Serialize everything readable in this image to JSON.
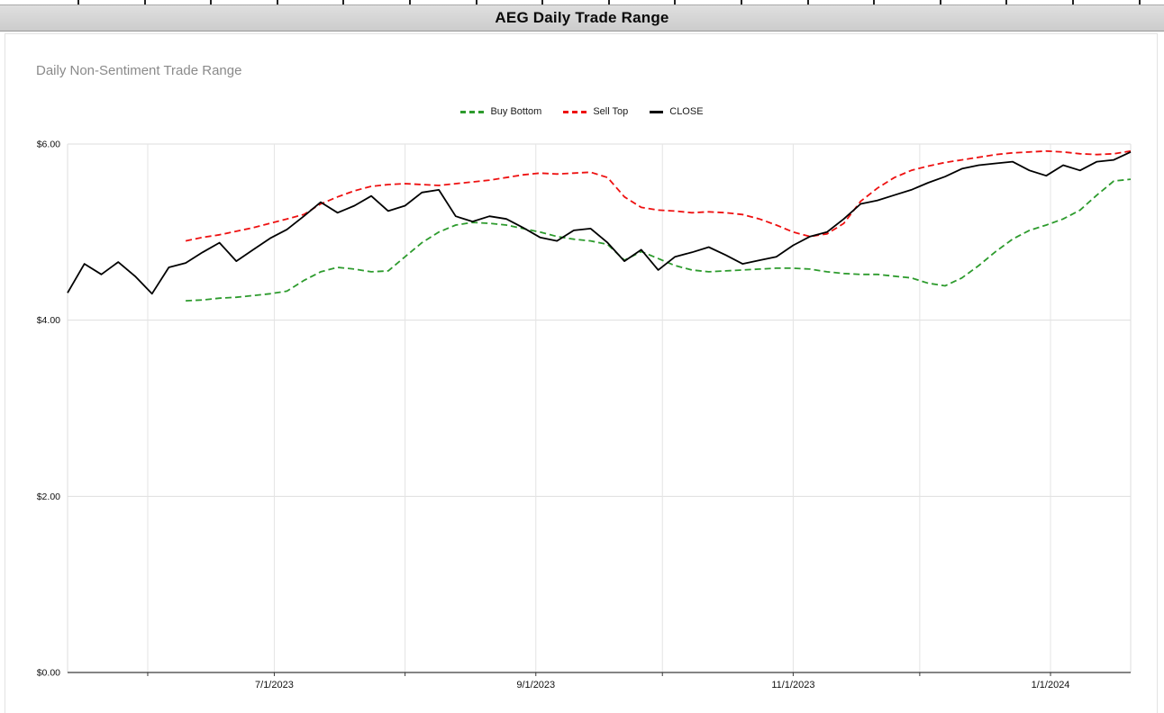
{
  "window": {
    "title": "AEG Daily Trade Range"
  },
  "chart": {
    "subtitle": "Daily Non-Sentiment Trade Range"
  },
  "chart_data": {
    "type": "line",
    "title": "AEG Daily Trade Range",
    "subtitle": "Daily Non-Sentiment Trade Range",
    "xlabel": "",
    "ylabel": "",
    "ylim": [
      0,
      6
    ],
    "xlim": [
      "2023-05-13",
      "2024-01-20"
    ],
    "grid": true,
    "legend_position": "top-center",
    "yticks": [
      {
        "value": 0,
        "label": "$0.00"
      },
      {
        "value": 2,
        "label": "$2.00"
      },
      {
        "value": 4,
        "label": "$4.00"
      },
      {
        "value": 6,
        "label": "$6.00"
      }
    ],
    "xticks": [
      {
        "date": "2023-06-01",
        "label": ""
      },
      {
        "date": "2023-07-01",
        "label": "7/1/2023"
      },
      {
        "date": "2023-08-01",
        "label": ""
      },
      {
        "date": "2023-09-01",
        "label": "9/1/2023"
      },
      {
        "date": "2023-10-01",
        "label": ""
      },
      {
        "date": "2023-11-01",
        "label": "11/1/2023"
      },
      {
        "date": "2023-12-01",
        "label": ""
      },
      {
        "date": "2024-01-01",
        "label": "1/1/2024"
      }
    ],
    "x": [
      "2023-05-13",
      "2023-05-17",
      "2023-05-21",
      "2023-05-25",
      "2023-05-29",
      "2023-06-02",
      "2023-06-06",
      "2023-06-10",
      "2023-06-14",
      "2023-06-18",
      "2023-06-22",
      "2023-06-26",
      "2023-06-30",
      "2023-07-04",
      "2023-07-08",
      "2023-07-12",
      "2023-07-16",
      "2023-07-20",
      "2023-07-24",
      "2023-07-28",
      "2023-08-01",
      "2023-08-05",
      "2023-08-09",
      "2023-08-13",
      "2023-08-17",
      "2023-08-21",
      "2023-08-25",
      "2023-08-29",
      "2023-09-02",
      "2023-09-06",
      "2023-09-10",
      "2023-09-14",
      "2023-09-18",
      "2023-09-22",
      "2023-09-26",
      "2023-09-30",
      "2023-10-04",
      "2023-10-08",
      "2023-10-12",
      "2023-10-16",
      "2023-10-20",
      "2023-10-24",
      "2023-10-28",
      "2023-11-01",
      "2023-11-05",
      "2023-11-09",
      "2023-11-13",
      "2023-11-17",
      "2023-11-21",
      "2023-11-25",
      "2023-11-29",
      "2023-12-03",
      "2023-12-07",
      "2023-12-11",
      "2023-12-15",
      "2023-12-19",
      "2023-12-23",
      "2023-12-27",
      "2023-12-31",
      "2024-01-04",
      "2024-01-08",
      "2024-01-12",
      "2024-01-16",
      "2024-01-20"
    ],
    "series": [
      {
        "name": "Buy Bottom",
        "color": "#2d9b2d",
        "style": "dashed",
        "dash": "7 4",
        "width": 1.8,
        "values": [
          null,
          null,
          null,
          null,
          null,
          null,
          null,
          4.22,
          4.23,
          4.25,
          4.26,
          4.28,
          4.3,
          4.33,
          4.45,
          4.55,
          4.6,
          4.58,
          4.55,
          4.56,
          4.72,
          4.88,
          5.0,
          5.08,
          5.11,
          5.1,
          5.08,
          5.04,
          5.0,
          4.95,
          4.92,
          4.9,
          4.86,
          4.68,
          4.78,
          4.7,
          4.62,
          4.57,
          4.55,
          4.56,
          4.57,
          4.58,
          4.59,
          4.59,
          4.58,
          4.55,
          4.53,
          4.52,
          4.52,
          4.5,
          4.48,
          4.42,
          4.39,
          4.48,
          4.62,
          4.78,
          4.92,
          5.02,
          5.08,
          5.15,
          5.25,
          5.42,
          5.58,
          5.6
        ]
      },
      {
        "name": "Sell Top",
        "color": "#ee1111",
        "style": "dashed",
        "dash": "7 4",
        "width": 1.8,
        "values": [
          null,
          null,
          null,
          null,
          null,
          null,
          null,
          4.9,
          4.94,
          4.97,
          5.01,
          5.05,
          5.1,
          5.15,
          5.2,
          5.32,
          5.4,
          5.47,
          5.52,
          5.54,
          5.55,
          5.54,
          5.53,
          5.55,
          5.57,
          5.59,
          5.62,
          5.65,
          5.67,
          5.66,
          5.67,
          5.68,
          5.62,
          5.4,
          5.28,
          5.25,
          5.24,
          5.22,
          5.23,
          5.22,
          5.2,
          5.15,
          5.08,
          5.0,
          4.95,
          4.98,
          5.1,
          5.35,
          5.5,
          5.62,
          5.7,
          5.75,
          5.79,
          5.82,
          5.85,
          5.88,
          5.9,
          5.91,
          5.92,
          5.91,
          5.89,
          5.88,
          5.89,
          5.92
        ]
      },
      {
        "name": "CLOSE",
        "color": "#000000",
        "style": "solid",
        "dash": "",
        "width": 1.8,
        "values": [
          4.31,
          4.64,
          4.52,
          4.66,
          4.5,
          4.3,
          4.6,
          4.65,
          4.77,
          4.88,
          4.67,
          4.8,
          4.93,
          5.03,
          5.18,
          5.34,
          5.22,
          5.3,
          5.41,
          5.24,
          5.3,
          5.45,
          5.48,
          5.18,
          5.12,
          5.18,
          5.15,
          5.05,
          4.94,
          4.9,
          5.02,
          5.04,
          4.88,
          4.67,
          4.8,
          4.57,
          4.72,
          4.77,
          4.83,
          4.74,
          4.64,
          4.68,
          4.72,
          4.85,
          4.95,
          5.0,
          5.15,
          5.32,
          5.36,
          5.42,
          5.48,
          5.56,
          5.63,
          5.72,
          5.76,
          5.78,
          5.8,
          5.7,
          5.64,
          5.76,
          5.7,
          5.8,
          5.82,
          5.91
        ]
      }
    ]
  }
}
